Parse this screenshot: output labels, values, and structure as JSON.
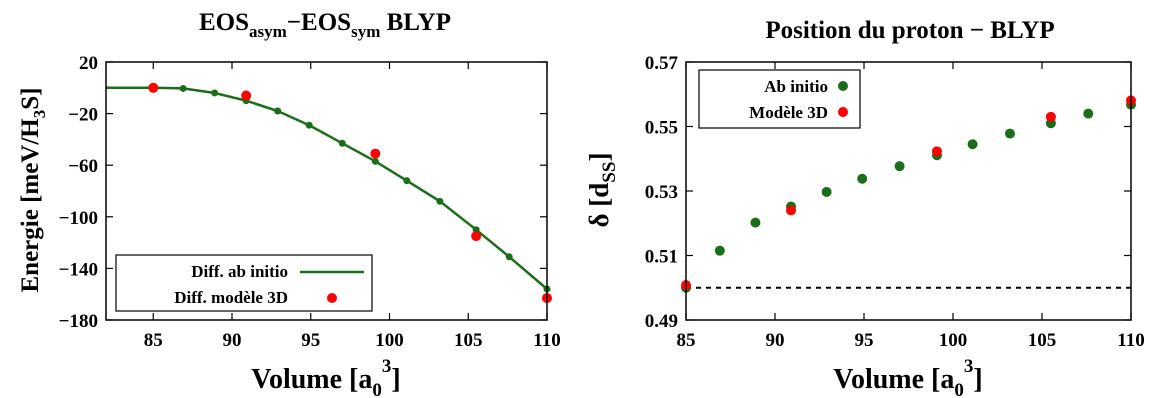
{
  "chart_data": [
    {
      "type": "line",
      "title": {
        "main_a": "EOS",
        "sub_a": "asym",
        "dash": "−",
        "main_b": "EOS",
        "sub_b": "sym",
        "rest": " BLYP"
      },
      "xlabel": {
        "text": "Volume [a",
        "sub": "0",
        "sup": "3",
        "close": "]"
      },
      "ylabel": {
        "text": "Energie [meV/H",
        "sub": "3",
        "close": "S]"
      },
      "xlim": [
        82,
        110
      ],
      "ylim": [
        -180,
        20
      ],
      "xticks": [
        "85",
        "90",
        "95",
        "100",
        "105",
        "110"
      ],
      "yticks": [
        "20",
        "−20",
        "−60",
        "−100",
        "−140",
        "−180"
      ],
      "xtick_values": [
        85,
        90,
        95,
        100,
        105,
        110
      ],
      "ytick_values": [
        20,
        -20,
        -60,
        -100,
        -140,
        -180
      ],
      "grid": false,
      "legend_position": "bottom-left",
      "series": [
        {
          "name": "Diff. ab initio",
          "style": "line+points",
          "color": "#1a6e1a",
          "x": [
            82,
            85,
            86.9,
            88.9,
            90.9,
            92.9,
            94.9,
            97.0,
            99.1,
            101.1,
            103.2,
            105.5,
            107.6,
            110
          ],
          "y": [
            0,
            0,
            -0.5,
            -4,
            -10,
            -18,
            -29,
            -43,
            -57,
            -72,
            -88,
            -110,
            -131,
            -156
          ]
        },
        {
          "name": "Diff. modèle 3D",
          "style": "points",
          "color": "#ff0000",
          "x": [
            85,
            90.9,
            99.1,
            105.5,
            110
          ],
          "y": [
            0,
            -6,
            -51,
            -115,
            -163
          ]
        }
      ]
    },
    {
      "type": "scatter",
      "title": {
        "text": "Position du proton −  BLYP"
      },
      "xlabel": {
        "text": "Volume [a",
        "sub": "0",
        "sup": "3",
        "close": "]"
      },
      "ylabel": {
        "text": "δ  [d",
        "sub": "SS",
        "close": "]"
      },
      "xlim": [
        85,
        110
      ],
      "ylim": [
        0.49,
        0.57
      ],
      "xticks": [
        "85",
        "90",
        "95",
        "100",
        "105",
        "110"
      ],
      "yticks": [
        "0.57",
        "0.55",
        "0.53",
        "0.51",
        "0.49"
      ],
      "xtick_values": [
        85,
        90,
        95,
        100,
        105,
        110
      ],
      "ytick_values": [
        0.57,
        0.55,
        0.53,
        0.51,
        0.49
      ],
      "grid": false,
      "legend_position": "top-left",
      "reference_line": {
        "y": 0.5,
        "style": "dashed"
      },
      "series": [
        {
          "name": "Ab initio",
          "color": "#1a6e1a",
          "x": [
            85,
            86.9,
            88.9,
            90.9,
            92.9,
            94.9,
            97.0,
            99.1,
            101.1,
            103.2,
            105.5,
            107.6,
            110
          ],
          "y": [
            0.5,
            0.5115,
            0.5202,
            0.5252,
            0.5297,
            0.5338,
            0.5377,
            0.5411,
            0.5445,
            0.5478,
            0.551,
            0.554,
            0.5568
          ]
        },
        {
          "name": "Modèle 3D",
          "color": "#ff0000",
          "x": [
            85,
            90.9,
            99.1,
            105.5,
            110
          ],
          "y": [
            0.5008,
            0.524,
            0.5423,
            0.553,
            0.5581
          ]
        }
      ]
    }
  ]
}
